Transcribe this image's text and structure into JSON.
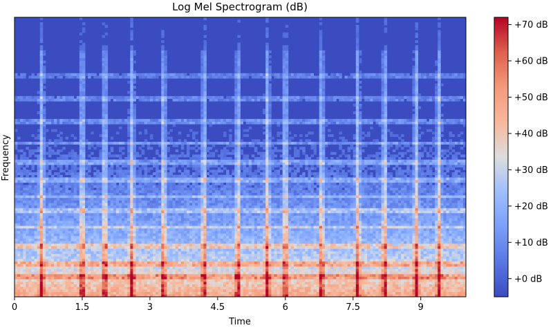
{
  "chart_data": {
    "type": "heatmap",
    "title": "Log Mel Spectrogram (dB)",
    "xlabel": "Time",
    "ylabel": "Frequency",
    "xlim": [
      0,
      10
    ],
    "x_ticks": [
      0,
      1.5,
      3,
      4.5,
      6,
      7.5,
      9
    ],
    "x_tick_labels": [
      "0",
      "1.5",
      "3",
      "4.5",
      "6",
      "7.5",
      "9"
    ],
    "colorbar": {
      "colormap": "coolwarm",
      "range": [
        -5,
        72
      ],
      "ticks": [
        0,
        10,
        20,
        30,
        40,
        50,
        60,
        70
      ],
      "tick_labels": [
        "+0 dB",
        "+10 dB",
        "+20 dB",
        "+30 dB",
        "+40 dB",
        "+50 dB",
        "+60 dB",
        "+70 dB"
      ]
    },
    "onsets_seconds": [
      0.6,
      1.5,
      2.0,
      2.6,
      3.3,
      4.2,
      4.95,
      5.6,
      6.0,
      6.8,
      7.6,
      8.2,
      8.9,
      9.4
    ],
    "harmonic_bands": [
      0.07,
      0.12,
      0.18,
      0.25,
      0.31,
      0.36,
      0.42,
      0.48,
      0.55,
      0.63,
      0.71,
      0.79
    ],
    "colors": {
      "low": "#3b4cc0",
      "mid": "#dddddd",
      "high": "#b40426"
    }
  }
}
